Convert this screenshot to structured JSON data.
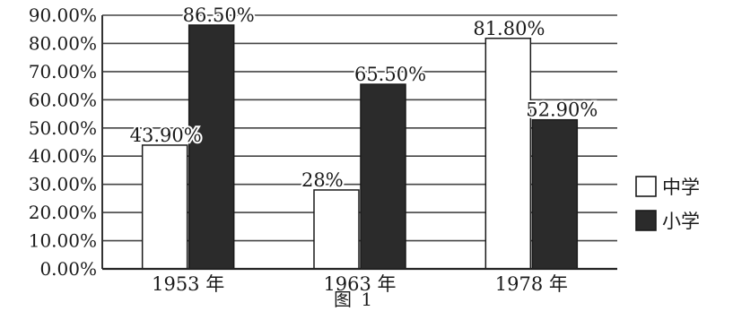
{
  "chart_data": {
    "type": "bar",
    "categories": [
      "1953 年",
      "1963 年",
      "1978 年"
    ],
    "series": [
      {
        "name": "中学",
        "values": [
          43.9,
          28,
          81.8
        ],
        "labels": [
          "43.90%",
          "28%",
          "81.80%"
        ],
        "color": "#ffffff"
      },
      {
        "name": "小学",
        "values": [
          86.5,
          65.5,
          52.9
        ],
        "labels": [
          "86.50%",
          "65.50%",
          "52.90%"
        ],
        "color": "#2b2b2b"
      }
    ],
    "yticks": [
      "0.00%",
      "10.00%",
      "20.00%",
      "30.00%",
      "40.00%",
      "50.00%",
      "60.00%",
      "70.00%",
      "80.00%",
      "90.00%"
    ],
    "ylim": [
      0,
      90
    ],
    "grid": true,
    "legend_position": "right",
    "title": "",
    "xlabel": "",
    "ylabel": ""
  },
  "caption": "图 1"
}
